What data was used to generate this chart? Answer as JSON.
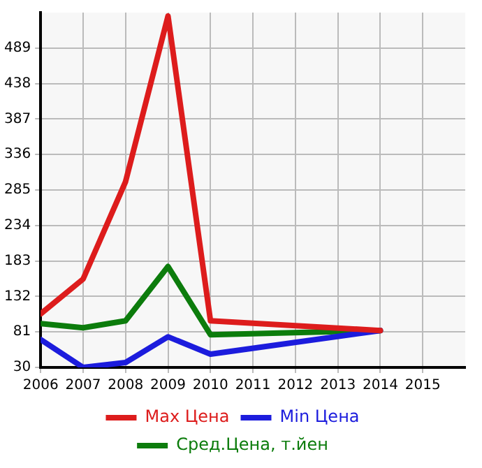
{
  "chart_data": {
    "type": "line",
    "xlim": [
      2006,
      2016
    ],
    "xticks": [
      2006,
      2007,
      2008,
      2009,
      2010,
      2011,
      2012,
      2013,
      2014,
      2015
    ],
    "ylim": [
      30,
      540
    ],
    "yticks": [
      30,
      81,
      132,
      183,
      234,
      285,
      336,
      387,
      438,
      489
    ],
    "grid": true,
    "legend": "bottom",
    "marker": "none",
    "line_style": "solid",
    "series": [
      {
        "name": "Max Цена",
        "color": "#dd1c1c",
        "x": [
          2006,
          2007,
          2008,
          2009,
          2010,
          2014
        ],
        "values": [
          107,
          157,
          297,
          535,
          97,
          83
        ]
      },
      {
        "name": "Min Цена",
        "color": "#1c1cdd",
        "x": [
          2006,
          2007,
          2008,
          2009,
          2010,
          2014
        ],
        "values": [
          70,
          30,
          37,
          74,
          49,
          83
        ]
      },
      {
        "name": "Сред.Цена, т.йен",
        "color": "#0c7c0c",
        "x": [
          2006,
          2007,
          2008,
          2009,
          2010,
          2014
        ],
        "values": [
          93,
          87,
          97,
          175,
          77,
          83
        ]
      }
    ]
  }
}
